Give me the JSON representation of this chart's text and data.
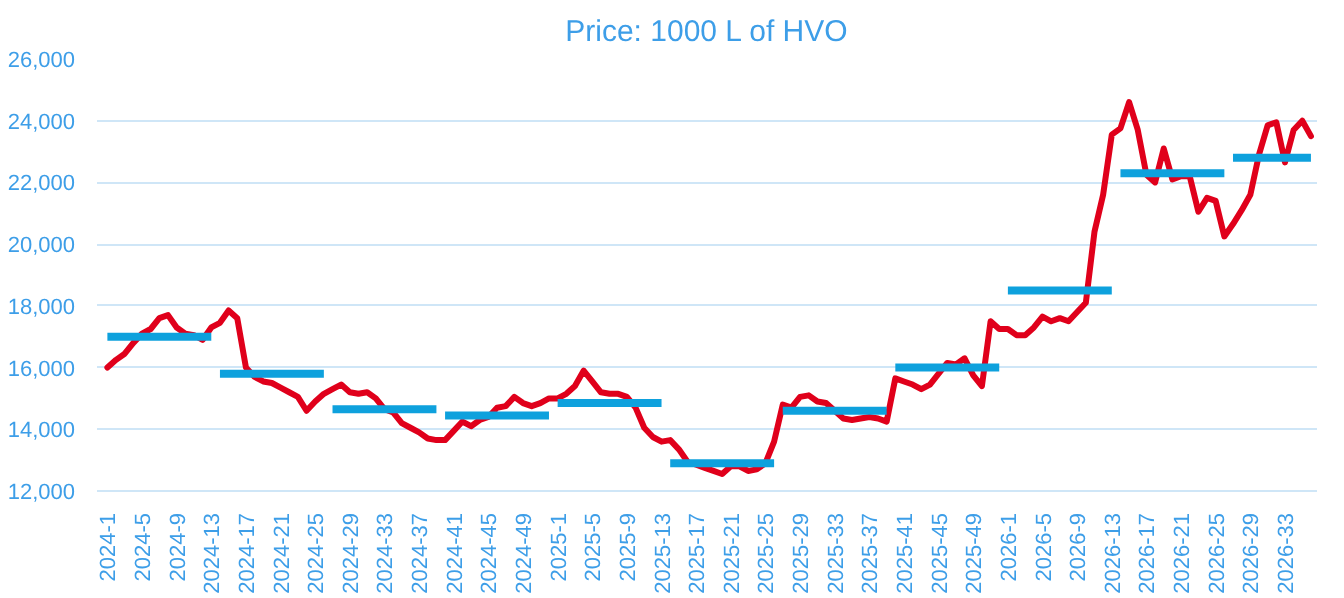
{
  "chart_data": {
    "type": "line",
    "title": "Price: 1000 L of HVO",
    "categories": [
      "2024-1",
      null,
      null,
      null,
      "2024-5",
      null,
      null,
      null,
      "2024-9",
      null,
      null,
      null,
      "2024-13",
      null,
      null,
      null,
      "2024-17",
      null,
      null,
      null,
      "2024-21",
      null,
      null,
      null,
      "2024-25",
      null,
      null,
      null,
      "2024-29",
      null,
      null,
      null,
      "2024-33",
      null,
      null,
      null,
      "2024-37",
      null,
      null,
      null,
      "2024-41",
      null,
      null,
      null,
      "2024-45",
      null,
      null,
      null,
      "2024-49",
      null,
      null,
      null,
      "2025-1",
      null,
      null,
      null,
      "2025-5",
      null,
      null,
      null,
      "2025-9",
      null,
      null,
      null,
      "2025-13",
      null,
      null,
      null,
      "2025-17",
      null,
      null,
      null,
      "2025-21",
      null,
      null,
      null,
      "2025-25",
      null,
      null,
      null,
      "2025-29",
      null,
      null,
      null,
      "2025-33",
      null,
      null,
      null,
      "2025-37",
      null,
      null,
      null,
      "2025-41",
      null,
      null,
      null,
      "2025-45",
      null,
      null,
      null,
      "2025-49",
      null,
      null,
      null,
      "2026-1",
      null,
      null,
      null,
      "2026-5",
      null,
      null,
      null,
      "2026-9",
      null,
      null,
      null,
      "2026-13",
      null,
      null,
      null,
      "2026-17",
      null,
      null,
      null,
      "2026-21",
      null,
      null,
      null,
      "2026-25",
      null,
      null,
      null,
      "2026-29",
      null,
      null,
      null,
      "2026-33",
      null,
      null,
      null
    ],
    "series": [
      {
        "color": "#e0001b",
        "values": [
          16000,
          16250,
          16450,
          16800,
          17100,
          17250,
          17600,
          17700,
          17300,
          17100,
          17050,
          16900,
          17300,
          17450,
          17850,
          17600,
          16000,
          15700,
          15550,
          15500,
          15350,
          15200,
          15050,
          14600,
          14900,
          15150,
          15300,
          15450,
          15200,
          15150,
          15200,
          15000,
          14650,
          14550,
          14200,
          14050,
          13900,
          13700,
          13650,
          13650,
          13950,
          14250,
          14100,
          14300,
          14400,
          14700,
          14750,
          15050,
          14850,
          14750,
          14850,
          15000,
          15000,
          15150,
          15400,
          15900,
          15550,
          15200,
          15150,
          15150,
          15050,
          14700,
          14050,
          13750,
          13600,
          13650,
          13350,
          12950,
          12850,
          12750,
          12650,
          12550,
          12800,
          12800,
          12650,
          12700,
          12900,
          13600,
          14800,
          14700,
          15050,
          15100,
          14900,
          14850,
          14600,
          14350,
          14300,
          14350,
          14400,
          14350,
          14250,
          15650,
          15550,
          15450,
          15300,
          15450,
          15800,
          16150,
          16100,
          16300,
          15750,
          15400,
          17500,
          17250,
          17250,
          17050,
          17050,
          17300,
          17650,
          17500,
          17600,
          17500,
          17800,
          18100,
          20400,
          21600,
          23550,
          23750,
          24600,
          23700,
          22250,
          22000,
          23100,
          22100,
          22200,
          22200,
          21050,
          21500,
          21400,
          20250,
          20650,
          21100,
          21600,
          22900,
          23850,
          23950,
          22650,
          23700,
          24000,
          23500
        ]
      },
      {
        "type": "line",
        "color": "#0ea1dd",
        "values": [
          17000,
          17000,
          17000,
          17000,
          17000,
          17000,
          17000,
          17000,
          17000,
          17000,
          17000,
          17000,
          17000,
          15800,
          15800,
          15800,
          15800,
          15800,
          15800,
          15800,
          15800,
          15800,
          15800,
          15800,
          15800,
          15800,
          14650,
          14650,
          14650,
          14650,
          14650,
          14650,
          14650,
          14650,
          14650,
          14650,
          14650,
          14650,
          14650,
          14450,
          14450,
          14450,
          14450,
          14450,
          14450,
          14450,
          14450,
          14450,
          14450,
          14450,
          14450,
          14450,
          14850,
          14850,
          14850,
          14850,
          14850,
          14850,
          14850,
          14850,
          14850,
          14850,
          14850,
          14850,
          14850,
          12900,
          12900,
          12900,
          12900,
          12900,
          12900,
          12900,
          12900,
          12900,
          12900,
          12900,
          12900,
          12900,
          14600,
          14600,
          14600,
          14600,
          14600,
          14600,
          14600,
          14600,
          14600,
          14600,
          14600,
          14600,
          14600,
          16000,
          16000,
          16000,
          16000,
          16000,
          16000,
          16000,
          16000,
          16000,
          16000,
          16000,
          16000,
          16000,
          18500,
          18500,
          18500,
          18500,
          18500,
          18500,
          18500,
          18500,
          18500,
          18500,
          18500,
          18500,
          18500,
          22300,
          22300,
          22300,
          22300,
          22300,
          22300,
          22300,
          22300,
          22300,
          22300,
          22300,
          22300,
          22300,
          22800,
          22800,
          22800,
          22800,
          22800,
          22800,
          22800,
          22800,
          22800,
          22800
        ]
      }
    ],
    "ylim": [
      12000,
      26000
    ],
    "yticks": [
      {
        "value": 12000,
        "label": "12,000"
      },
      {
        "value": 14000,
        "label": "14,000"
      },
      {
        "value": 16000,
        "label": "16,000"
      },
      {
        "value": 18000,
        "label": "18,000"
      },
      {
        "value": 20000,
        "label": "20,000"
      },
      {
        "value": 22000,
        "label": "22,000"
      },
      {
        "value": 24000,
        "label": "24,000"
      },
      {
        "value": 26000,
        "label": "26,000"
      }
    ],
    "grid": "y"
  }
}
